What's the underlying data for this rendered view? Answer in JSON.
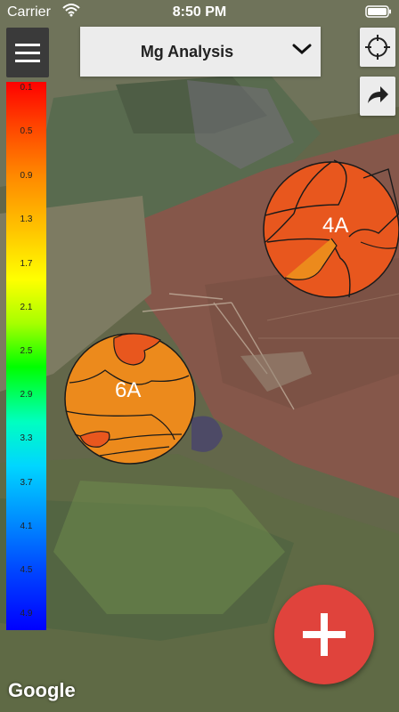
{
  "status_bar": {
    "carrier": "Carrier",
    "time": "8:50 PM"
  },
  "header": {
    "dropdown_label": "Mg Analysis"
  },
  "legend": {
    "ticks": [
      "0.1",
      "0.5",
      "0.9",
      "1.3",
      "1.7",
      "2.1",
      "2.5",
      "2.9",
      "3.3",
      "3.7",
      "4.1",
      "4.5",
      "4.9"
    ]
  },
  "fields": {
    "a": {
      "label": "4A"
    },
    "b": {
      "label": "6A"
    }
  },
  "map": {
    "attribution": "Google"
  },
  "icons": [
    "wifi-icon",
    "battery-icon",
    "menu-icon",
    "chevron-down-icon",
    "crosshair-icon",
    "share-arrow-icon",
    "add-icon"
  ],
  "colors": {
    "fab": "#e0433c",
    "field_a": "#e8571e",
    "field_b": "#ec8a1c"
  }
}
